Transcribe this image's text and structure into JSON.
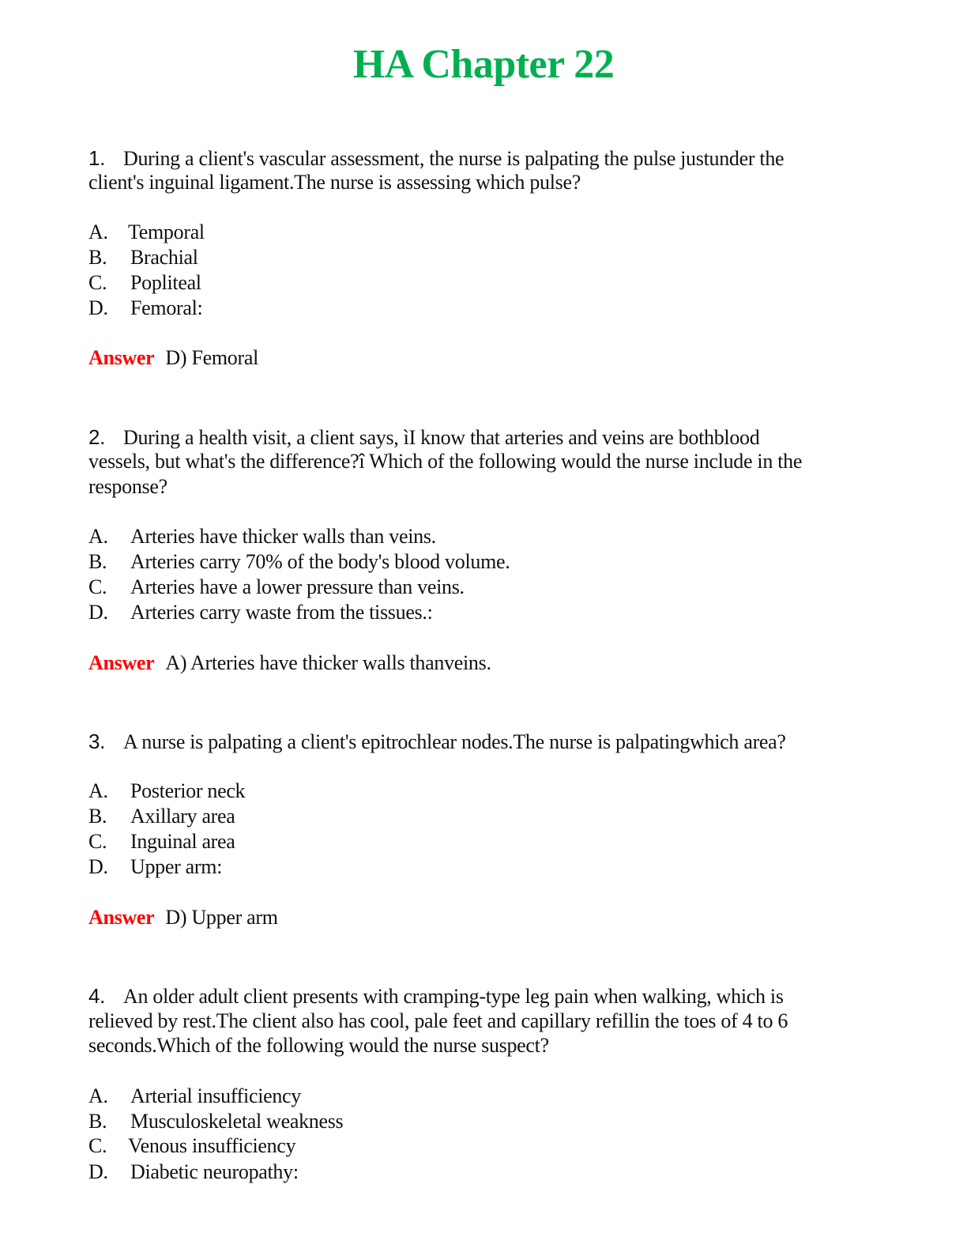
{
  "title": "HA Chapter 22",
  "answer_label": "Answer",
  "questions": [
    {
      "number": "1.",
      "lines": [
        "During a client's vascular assessment, the nurse is palpating the pulse justunder the",
        "client's inguinal ligament.The nurse is assessing which pulse?"
      ],
      "options": [
        {
          "letter": "A.",
          "text": "Temporal"
        },
        {
          "letter": "B.",
          "text": "Brachial"
        },
        {
          "letter": "C.",
          "text": "Popliteal"
        },
        {
          "letter": "D.",
          "text": "Femoral:"
        }
      ],
      "answer": "D) Femoral"
    },
    {
      "number": "2.",
      "lines": [
        "During a health visit, a client says, ìI know that arteries and veins are bothblood",
        "vessels, but what's the difference?î Which of the following would the nurse include in the",
        "response?"
      ],
      "options": [
        {
          "letter": "A.",
          "text": "Arteries have thicker walls than veins."
        },
        {
          "letter": "B.",
          "text": "Arteries carry 70% of the body's blood volume."
        },
        {
          "letter": "C.",
          "text": "Arteries have a lower pressure than veins."
        },
        {
          "letter": "D.",
          "text": "Arteries carry waste from the tissues.:"
        }
      ],
      "answer": "A) Arteries have thicker walls thanveins."
    },
    {
      "number": "3.",
      "lines": [
        "A nurse is palpating a client's epitrochlear nodes.The nurse is palpatingwhich area?"
      ],
      "options": [
        {
          "letter": "A.",
          "text": "Posterior neck"
        },
        {
          "letter": "B.",
          "text": "Axillary area"
        },
        {
          "letter": "C.",
          "text": "Inguinal area"
        },
        {
          "letter": "D.",
          "text": "Upper arm:"
        }
      ],
      "answer": "D) Upper arm"
    },
    {
      "number": "4.",
      "lines": [
        "An older adult client presents with cramping-type leg pain when walking, which is",
        "relieved by rest.The client also has cool, pale feet and capillary refillin the toes of 4 to 6",
        "seconds.Which of the following would the nurse suspect?"
      ],
      "options": [
        {
          "letter": "A.",
          "text": "Arterial insufficiency"
        },
        {
          "letter": "B.",
          "text": "Musculoskeletal weakness"
        },
        {
          "letter": "C.",
          "text": "Venous insufficiency"
        },
        {
          "letter": "D.",
          "text": "Diabetic neuropathy:"
        }
      ],
      "answer": null
    }
  ]
}
